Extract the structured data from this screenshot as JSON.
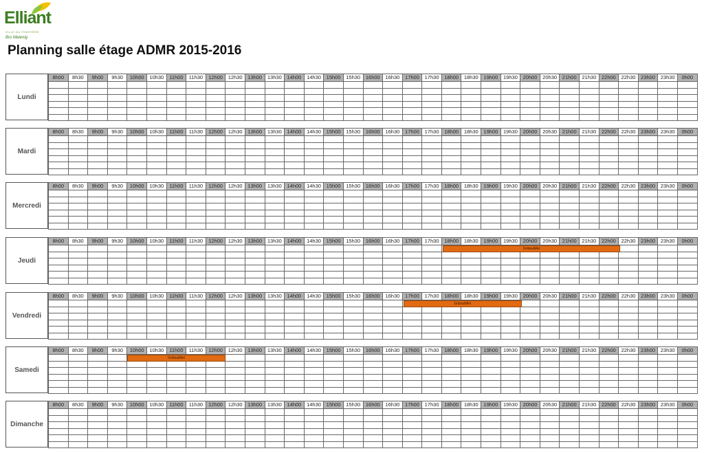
{
  "logo": {
    "name": "Elliant",
    "tagline": "VILLE DU FINISTÈRE",
    "subtitle": "Bro Melenig",
    "leaf_colors": [
      "#f2c200",
      "#8cc63f"
    ]
  },
  "title": "Planning salle étage ADMR 2015-2016",
  "colors": {
    "full_hour_header": "#b3b3b3",
    "booking": "#e26a12"
  },
  "time_slots": [
    "8h00",
    "8h30",
    "9h00",
    "9h30",
    "10h00",
    "10h30",
    "11h00",
    "11h30",
    "12h00",
    "12h30",
    "13h00",
    "13h30",
    "14h00",
    "14h30",
    "15h00",
    "15h30",
    "16h00",
    "16h30",
    "17h00",
    "17h30",
    "18h00",
    "18h30",
    "19h00",
    "19h30",
    "20h00",
    "20h30",
    "21h00",
    "21h30",
    "22h00",
    "22h30",
    "23h00",
    "23h30",
    "0h00"
  ],
  "days": [
    {
      "name": "Lundi",
      "bookings": []
    },
    {
      "name": "Mardi",
      "bookings": []
    },
    {
      "name": "Mercredi",
      "bookings": []
    },
    {
      "name": "Jeudi",
      "bookings": [
        {
          "label": "GribouillArt",
          "start": "18h00",
          "end": "22h30",
          "row": 1
        }
      ]
    },
    {
      "name": "Vendredi",
      "bookings": [
        {
          "label": "GribouillArt",
          "start": "17h00",
          "end": "20h00",
          "row": 1
        }
      ]
    },
    {
      "name": "Samedi",
      "bookings": [
        {
          "label": "GribouillArt",
          "start": "10h00",
          "end": "12h30",
          "row": 1
        }
      ]
    },
    {
      "name": "Dimanche",
      "bookings": []
    }
  ]
}
